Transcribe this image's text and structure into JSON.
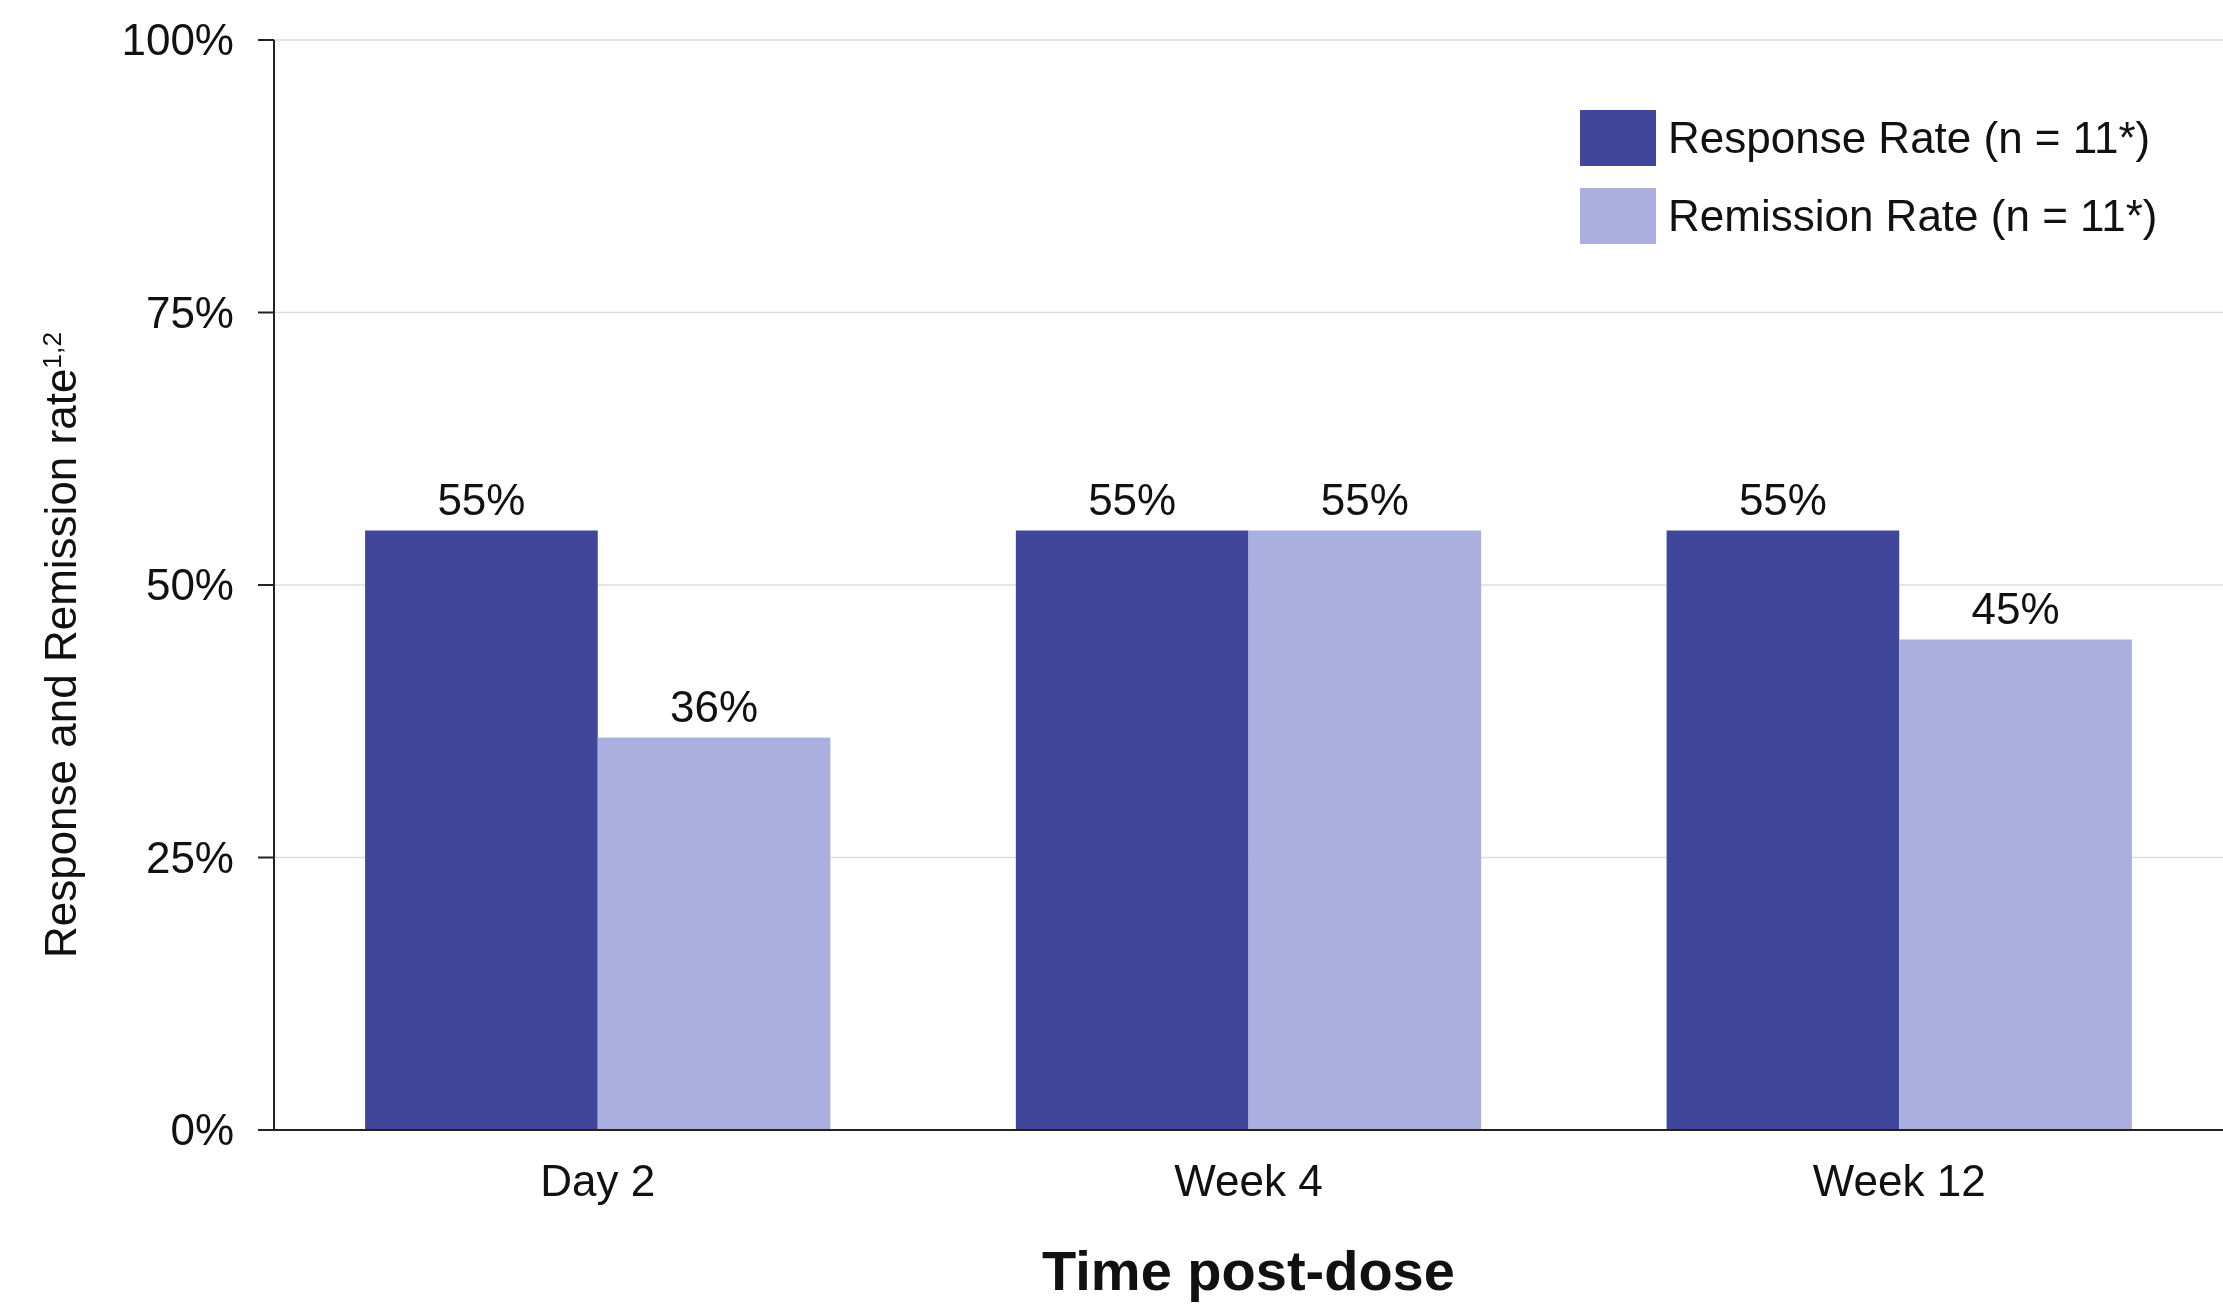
{
  "chart_data": {
    "type": "bar",
    "xlabel": "Time post-dose",
    "ylabel": "Response and Remission rate$^{1,2}$",
    "categories": [
      "Day 2",
      "Week 4",
      "Week 12"
    ],
    "series": [
      {
        "name": "Response Rate (n = 11*)",
        "color": "#3f469c",
        "values": [
          55,
          55,
          55
        ],
        "value_labels": [
          "55%",
          "55%",
          "55%"
        ]
      },
      {
        "name": "Remission Rate (n = 11*)",
        "color": "#abafdf",
        "values": [
          36,
          55,
          45
        ],
        "value_labels": [
          "36%",
          "55%",
          "45%"
        ]
      }
    ],
    "ylim": [
      0,
      100
    ],
    "yticks": [
      {
        "value": 0,
        "label": "0%"
      },
      {
        "value": 25,
        "label": "25%"
      },
      {
        "value": 50,
        "label": "50%"
      },
      {
        "value": 75,
        "label": "75%"
      },
      {
        "value": 100,
        "label": "100%"
      }
    ],
    "grid": "y",
    "legend": "top right"
  }
}
